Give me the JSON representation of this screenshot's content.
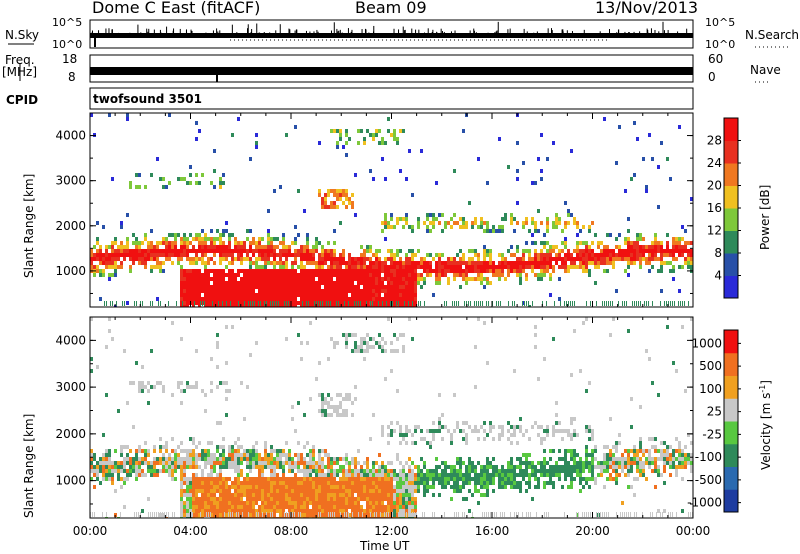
{
  "header": {
    "radar": "Dome C East (fitACF)",
    "beam": "Beam 09",
    "date": "13/Nov/2013"
  },
  "top_panels": {
    "nsky_label": "N.Sky",
    "nsky_ticks": [
      "10^5",
      "10^0"
    ],
    "nsearch_label": "N.Search",
    "nsearch_ticks": [
      "10^5",
      "10^0"
    ],
    "freq_label_line1": "Freq.",
    "freq_label_line2": "[MHz]",
    "freq_ticks": [
      "18",
      "8"
    ],
    "nave_label": "Nave",
    "nave_ticks": [
      "60",
      "0"
    ],
    "cpid_label": "CPID",
    "cpid_value": "twofsound 3501"
  },
  "chart_data": [
    {
      "type": "heatmap",
      "name": "power",
      "ylabel": "Slant Range [km]",
      "y_ticks": [
        "1000",
        "2000",
        "3000",
        "4000"
      ],
      "ylim": [
        200,
        4500
      ],
      "xlim": [
        0,
        24
      ],
      "colorbar_label": "Power [dB]",
      "colorbar_ticks": [
        "4",
        "8",
        "12",
        "16",
        "20",
        "24",
        "28"
      ],
      "colors": [
        "#2a2ad8",
        "#2850a8",
        "#2e8a5a",
        "#7ec83a",
        "#f0c020",
        "#f07820",
        "#e83020",
        "#f01010"
      ]
    },
    {
      "type": "heatmap",
      "name": "velocity",
      "ylabel": "Slant Range [km]",
      "y_ticks": [
        "1000",
        "2000",
        "3000",
        "4000"
      ],
      "ylim": [
        200,
        4500
      ],
      "xlim": [
        0,
        24
      ],
      "colorbar_label": "Velocity [m s",
      "colorbar_label_sup": "-1",
      "colorbar_label_end": "]",
      "colorbar_ticks": [
        "1000",
        "500",
        "100",
        "25",
        "-25",
        "-100",
        "-500",
        "-1000"
      ],
      "colors": [
        "#1e3ca0",
        "#2a6ab0",
        "#2e8a5a",
        "#58c840",
        "#c8c8c8",
        "#f0a020",
        "#f07020",
        "#f01010"
      ]
    }
  ],
  "x_axis": {
    "ticks": [
      "00:00",
      "04:00",
      "08:00",
      "12:00",
      "16:00",
      "20:00",
      "00:00"
    ],
    "label": "Time UT"
  }
}
